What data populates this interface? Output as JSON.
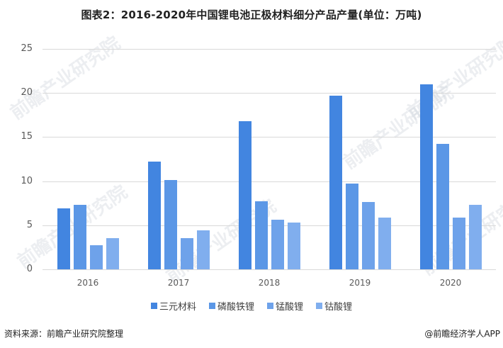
{
  "title": "图表2：2016-2020年中国锂电池正极材料细分产品产量(单位：万吨)",
  "chart_data": {
    "type": "bar",
    "title": "图表2：2016-2020年中国锂电池正极材料细分产品产量(单位：万吨)",
    "xlabel": "",
    "ylabel": "万吨",
    "ylim": [
      0,
      25
    ],
    "yticks": [
      "0",
      "5",
      "10",
      "15",
      "20",
      "25"
    ],
    "grid": true,
    "legend_position": "bottom",
    "categories": [
      "2016",
      "2017",
      "2018",
      "2019",
      "2020"
    ],
    "series": [
      {
        "name": "三元材料",
        "color": "#4285e0",
        "values": [
          6.9,
          12.2,
          16.8,
          19.7,
          21.0
        ]
      },
      {
        "name": "磷酸铁锂",
        "color": "#5b97e6",
        "values": [
          7.3,
          10.1,
          7.7,
          9.7,
          14.2
        ]
      },
      {
        "name": "锰酸锂",
        "color": "#6ea2ea",
        "values": [
          2.7,
          3.5,
          5.6,
          7.6,
          5.9
        ]
      },
      {
        "name": "钴酸锂",
        "color": "#80aeee",
        "values": [
          3.5,
          4.4,
          5.3,
          5.9,
          7.3
        ]
      }
    ]
  },
  "watermark": "前瞻产业研究院",
  "footer": {
    "source": "资料来源：前瞻产业研究院整理",
    "credit": "@前瞻经济学人APP"
  }
}
